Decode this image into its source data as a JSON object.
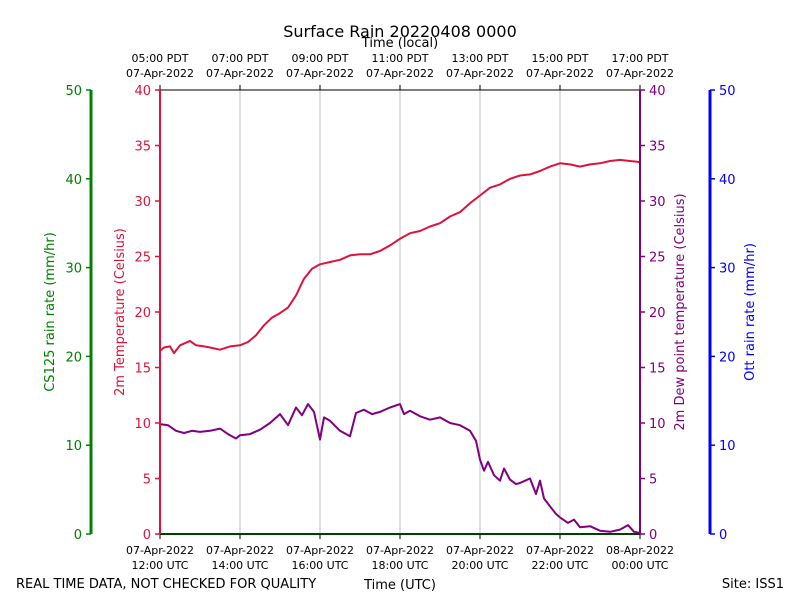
{
  "chart_data": {
    "type": "line",
    "title": "Surface Rain 20220408 0000",
    "top_axis_label": "Time (local)",
    "x_label": "Time (UTC)",
    "footer_left": "REAL TIME DATA, NOT CHECKED FOR QUALITY",
    "footer_right": "Site: ISS1",
    "x_range_hours_utc": [
      12,
      24
    ],
    "x_ticks_utc": [
      {
        "h": 12,
        "line1": "07-Apr-2022",
        "line2": "12:00 UTC"
      },
      {
        "h": 14,
        "line1": "07-Apr-2022",
        "line2": "14:00 UTC"
      },
      {
        "h": 16,
        "line1": "07-Apr-2022",
        "line2": "16:00 UTC"
      },
      {
        "h": 18,
        "line1": "07-Apr-2022",
        "line2": "18:00 UTC"
      },
      {
        "h": 20,
        "line1": "07-Apr-2022",
        "line2": "20:00 UTC"
      },
      {
        "h": 22,
        "line1": "07-Apr-2022",
        "line2": "22:00 UTC"
      },
      {
        "h": 24,
        "line1": "08-Apr-2022",
        "line2": "00:00 UTC"
      }
    ],
    "x_ticks_local": [
      {
        "h": 12,
        "line1": "05:00 PDT",
        "line2": "07-Apr-2022"
      },
      {
        "h": 14,
        "line1": "07:00 PDT",
        "line2": "07-Apr-2022"
      },
      {
        "h": 16,
        "line1": "09:00 PDT",
        "line2": "07-Apr-2022"
      },
      {
        "h": 18,
        "line1": "11:00 PDT",
        "line2": "07-Apr-2022"
      },
      {
        "h": 20,
        "line1": "13:00 PDT",
        "line2": "07-Apr-2022"
      },
      {
        "h": 22,
        "line1": "15:00 PDT",
        "line2": "07-Apr-2022"
      },
      {
        "h": 24,
        "line1": "17:00 PDT",
        "line2": "07-Apr-2022"
      }
    ],
    "axes": {
      "temperature": {
        "label": "2m Temperature (Celsius)",
        "range": [
          0,
          40
        ],
        "ticks": [
          0,
          5,
          10,
          15,
          20,
          25,
          30,
          35,
          40
        ],
        "color": "#dc143c"
      },
      "dewpoint": {
        "label": "2m Dew point temperature (Celsius)",
        "range": [
          0,
          40
        ],
        "ticks": [
          0,
          5,
          10,
          15,
          20,
          25,
          30,
          35,
          40
        ],
        "color": "#800080"
      },
      "cs125": {
        "label": "CS125 rain rate (mm/hr)",
        "range": [
          0,
          50
        ],
        "ticks": [
          0,
          10,
          20,
          30,
          40,
          50
        ],
        "color": "#008000"
      },
      "ott": {
        "label": "Ott rain rate (mm/hr)",
        "range": [
          0,
          50
        ],
        "ticks": [
          0,
          10,
          20,
          30,
          40,
          50
        ],
        "color": "#0000ff"
      }
    },
    "series": [
      {
        "name": "2m Temperature",
        "axis": "temperature",
        "color": "#dc143c",
        "points": [
          [
            12.0,
            16.5
          ],
          [
            12.1,
            16.8
          ],
          [
            12.25,
            16.9
          ],
          [
            12.35,
            16.3
          ],
          [
            12.5,
            17.0
          ],
          [
            12.75,
            17.4
          ],
          [
            12.9,
            17.0
          ],
          [
            13.1,
            16.9
          ],
          [
            13.25,
            16.8
          ],
          [
            13.5,
            16.6
          ],
          [
            13.75,
            16.9
          ],
          [
            14.0,
            17.0
          ],
          [
            14.2,
            17.3
          ],
          [
            14.4,
            17.9
          ],
          [
            14.6,
            18.8
          ],
          [
            14.8,
            19.5
          ],
          [
            15.0,
            19.9
          ],
          [
            15.2,
            20.4
          ],
          [
            15.4,
            21.5
          ],
          [
            15.6,
            23.0
          ],
          [
            15.8,
            23.9
          ],
          [
            16.0,
            24.3
          ],
          [
            16.25,
            24.5
          ],
          [
            16.5,
            24.7
          ],
          [
            16.75,
            25.1
          ],
          [
            17.0,
            25.2
          ],
          [
            17.25,
            25.2
          ],
          [
            17.5,
            25.5
          ],
          [
            17.75,
            26.0
          ],
          [
            18.0,
            26.6
          ],
          [
            18.25,
            27.1
          ],
          [
            18.5,
            27.3
          ],
          [
            18.75,
            27.7
          ],
          [
            19.0,
            28.0
          ],
          [
            19.25,
            28.6
          ],
          [
            19.5,
            29.0
          ],
          [
            19.75,
            29.8
          ],
          [
            20.0,
            30.5
          ],
          [
            20.25,
            31.2
          ],
          [
            20.5,
            31.5
          ],
          [
            20.75,
            32.0
          ],
          [
            21.0,
            32.3
          ],
          [
            21.25,
            32.4
          ],
          [
            21.5,
            32.7
          ],
          [
            21.75,
            33.1
          ],
          [
            22.0,
            33.4
          ],
          [
            22.25,
            33.3
          ],
          [
            22.5,
            33.1
          ],
          [
            22.75,
            33.3
          ],
          [
            23.0,
            33.4
          ],
          [
            23.25,
            33.6
          ],
          [
            23.5,
            33.7
          ],
          [
            23.75,
            33.6
          ],
          [
            24.0,
            33.5
          ]
        ]
      },
      {
        "name": "2m Dew point temperature",
        "axis": "dewpoint",
        "color": "#800080",
        "points": [
          [
            12.0,
            9.9
          ],
          [
            12.2,
            9.8
          ],
          [
            12.4,
            9.3
          ],
          [
            12.6,
            9.1
          ],
          [
            12.8,
            9.3
          ],
          [
            13.0,
            9.2
          ],
          [
            13.25,
            9.3
          ],
          [
            13.5,
            9.5
          ],
          [
            13.7,
            9.0
          ],
          [
            13.9,
            8.6
          ],
          [
            14.0,
            8.9
          ],
          [
            14.25,
            9.0
          ],
          [
            14.5,
            9.4
          ],
          [
            14.75,
            10.0
          ],
          [
            15.0,
            10.8
          ],
          [
            15.2,
            9.8
          ],
          [
            15.4,
            11.4
          ],
          [
            15.55,
            10.7
          ],
          [
            15.7,
            11.7
          ],
          [
            15.85,
            11.0
          ],
          [
            16.0,
            8.5
          ],
          [
            16.1,
            10.5
          ],
          [
            16.25,
            10.2
          ],
          [
            16.5,
            9.3
          ],
          [
            16.75,
            8.8
          ],
          [
            16.9,
            10.9
          ],
          [
            17.1,
            11.2
          ],
          [
            17.3,
            10.8
          ],
          [
            17.5,
            11.0
          ],
          [
            17.75,
            11.4
          ],
          [
            18.0,
            11.7
          ],
          [
            18.1,
            10.8
          ],
          [
            18.25,
            11.1
          ],
          [
            18.5,
            10.6
          ],
          [
            18.75,
            10.3
          ],
          [
            19.0,
            10.5
          ],
          [
            19.25,
            10.0
          ],
          [
            19.5,
            9.8
          ],
          [
            19.75,
            9.3
          ],
          [
            19.9,
            8.4
          ],
          [
            20.0,
            6.7
          ],
          [
            20.1,
            5.7
          ],
          [
            20.2,
            6.5
          ],
          [
            20.35,
            5.3
          ],
          [
            20.5,
            4.8
          ],
          [
            20.6,
            5.9
          ],
          [
            20.75,
            4.9
          ],
          [
            20.9,
            4.5
          ],
          [
            21.0,
            4.6
          ],
          [
            21.25,
            5.0
          ],
          [
            21.4,
            3.6
          ],
          [
            21.5,
            4.8
          ],
          [
            21.6,
            3.2
          ],
          [
            21.75,
            2.5
          ],
          [
            21.9,
            1.8
          ],
          [
            22.0,
            1.5
          ],
          [
            22.2,
            1.0
          ],
          [
            22.35,
            1.3
          ],
          [
            22.5,
            0.6
          ],
          [
            22.75,
            0.7
          ],
          [
            23.0,
            0.3
          ],
          [
            23.25,
            0.2
          ],
          [
            23.5,
            0.4
          ],
          [
            23.7,
            0.8
          ],
          [
            23.85,
            0.2
          ],
          [
            24.0,
            0.1
          ]
        ]
      },
      {
        "name": "CS125 rain rate",
        "axis": "cs125",
        "color": "#008000",
        "points": [
          [
            12.0,
            0
          ],
          [
            24.0,
            0
          ]
        ]
      },
      {
        "name": "Ott rain rate",
        "axis": "ott",
        "color": "#0000ff",
        "points": []
      }
    ]
  }
}
